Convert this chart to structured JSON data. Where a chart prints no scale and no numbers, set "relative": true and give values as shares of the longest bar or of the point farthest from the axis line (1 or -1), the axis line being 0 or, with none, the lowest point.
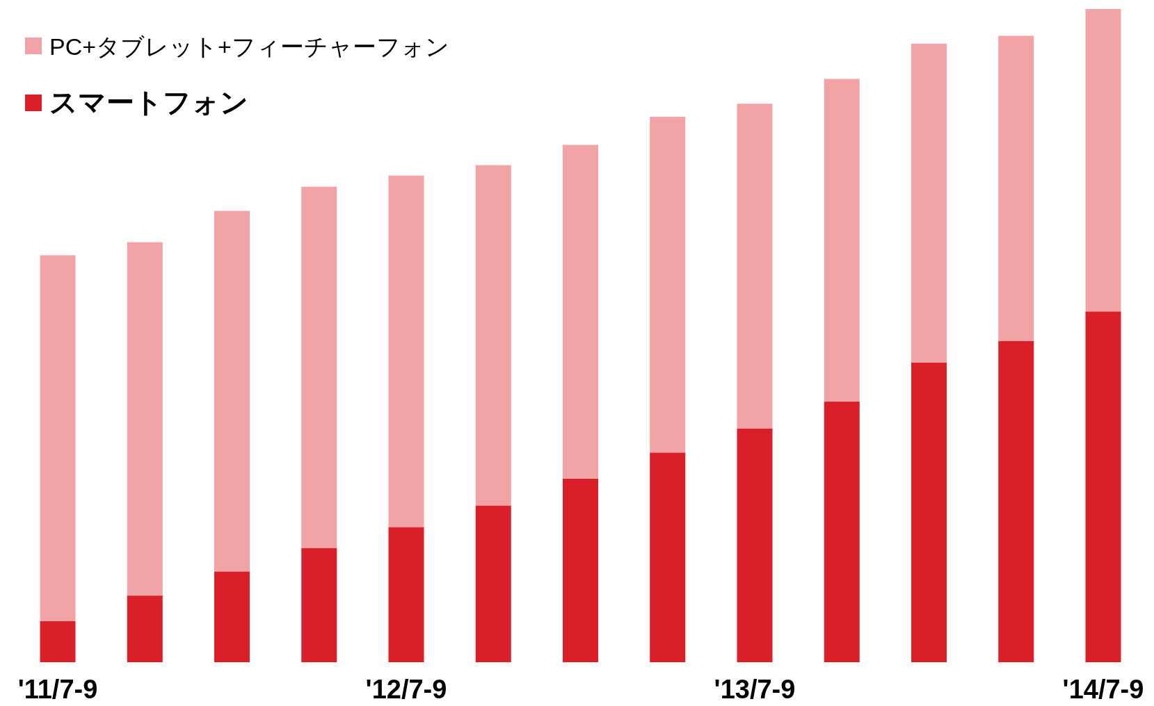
{
  "chart_data": {
    "type": "bar",
    "stacked": true,
    "relative": true,
    "legend": "top left",
    "categories": [
      "'11/7-9",
      null,
      null,
      null,
      "'12/7-9",
      null,
      null,
      null,
      "'13/7-9",
      null,
      null,
      null,
      "'14/7-9"
    ],
    "series": [
      {
        "name": "スマートフォン",
        "color": "#da1f28",
        "values": [
          0.063,
          0.102,
          0.139,
          0.175,
          0.207,
          0.24,
          0.281,
          0.321,
          0.358,
          0.399,
          0.459,
          0.492,
          0.537
        ]
      },
      {
        "name": "PC+タブレット+フィーチャーフォン",
        "color": "#f2a3a6",
        "values": [
          0.56,
          0.541,
          0.552,
          0.553,
          0.538,
          0.521,
          0.511,
          0.514,
          0.497,
          0.494,
          0.488,
          0.467,
          0.463
        ]
      }
    ]
  }
}
